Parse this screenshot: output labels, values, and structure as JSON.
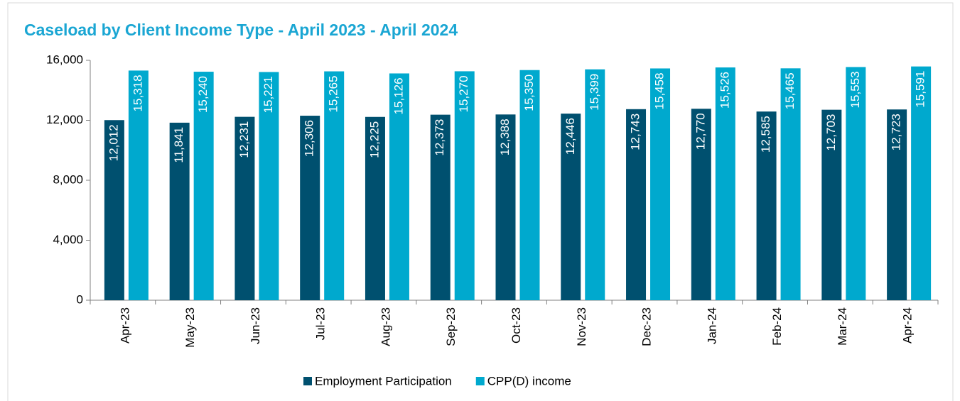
{
  "chart_data": {
    "type": "bar",
    "title": "Caseload by Client Income Type - April 2023 - April 2024",
    "categories": [
      "Apr-23",
      "May-23",
      "Jun-23",
      "Jul-23",
      "Aug-23",
      "Sep-23",
      "Oct-23",
      "Nov-23",
      "Dec-23",
      "Jan-24",
      "Feb-24",
      "Mar-24",
      "Apr-24"
    ],
    "series": [
      {
        "name": "Employment Participation",
        "color": "#00506f",
        "values": [
          12012,
          11841,
          12231,
          12306,
          12225,
          12373,
          12388,
          12446,
          12743,
          12770,
          12585,
          12703,
          12723
        ],
        "value_labels": [
          "12,012",
          "11,841",
          "12,231",
          "12,306",
          "12,225",
          "12,373",
          "12,388",
          "12,446",
          "12,743",
          "12,770",
          "12,585",
          "12,703",
          "12,723"
        ]
      },
      {
        "name": "CPP(D) income",
        "color": "#00a9ce",
        "values": [
          15318,
          15240,
          15221,
          15265,
          15126,
          15270,
          15350,
          15399,
          15458,
          15526,
          15465,
          15553,
          15591
        ],
        "value_labels": [
          "15,318",
          "15,240",
          "15,221",
          "15,265",
          "15,126",
          "15,270",
          "15,350",
          "15,399",
          "15,458",
          "15,526",
          "15,465",
          "15,553",
          "15,591"
        ]
      }
    ],
    "ylim": [
      0,
      16000
    ],
    "yticks": [
      0,
      {
        "value": 4000,
        "label": "4,000"
      },
      {
        "value": 8000,
        "label": "8,000"
      },
      {
        "value": 12000,
        "label": "12,000"
      },
      {
        "value": 16000,
        "label": "16,000"
      }
    ],
    "legend": "bottom"
  }
}
